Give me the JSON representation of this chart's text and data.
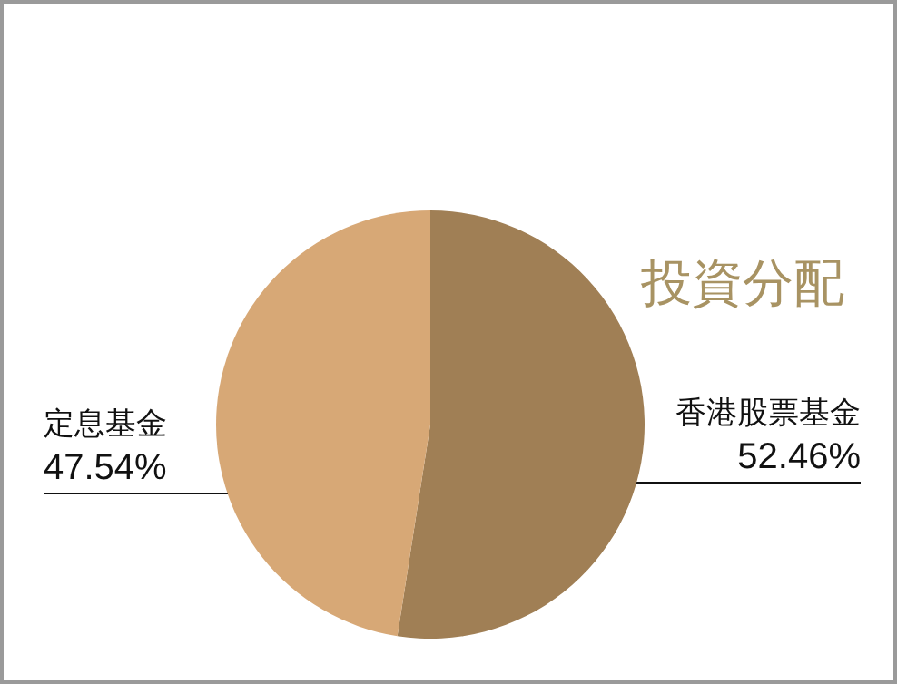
{
  "chart_data": {
    "type": "pie",
    "title": "投資分配",
    "categories": [
      "香港股票基金",
      "定息基金"
    ],
    "values": [
      52.46,
      47.54
    ],
    "value_labels": [
      "52.46%",
      "47.54%"
    ],
    "colors": [
      "#a07f55",
      "#d7a876"
    ],
    "legend": false
  }
}
